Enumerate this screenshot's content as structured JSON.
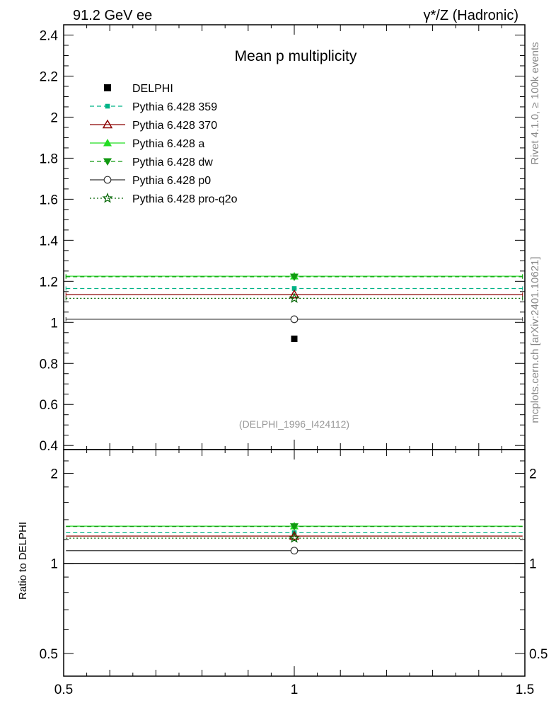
{
  "header": {
    "left": "91.2 GeV ee",
    "right": "γ*/Z (Hadronic)"
  },
  "side_labels": {
    "rivet": "Rivet 4.1.0, ≥ 100k events",
    "mcplots": "mcplots.cern.ch [arXiv:2401.10621]"
  },
  "chart_data": [
    {
      "type": "line",
      "title": "Mean p multiplicity",
      "analysis_tag": "(DELPHI_1996_I424112)",
      "xlim": [
        0.5,
        1.5
      ],
      "ylim": [
        0.38,
        2.45
      ],
      "y_ticks": [
        0.4,
        0.6,
        0.8,
        1,
        1.2,
        1.4,
        1.6,
        1.8,
        2,
        2.2,
        2.4
      ],
      "y_tick_labels": [
        "0.4",
        "0.6",
        "0.8",
        "1",
        "1.2",
        "1.4",
        "1.6",
        "1.8",
        "2",
        "2.2",
        "2.4"
      ],
      "data": {
        "name": "DELPHI",
        "x": [
          1
        ],
        "y": [
          0.92
        ]
      },
      "series": [
        {
          "name": "Pythia 6.428 359",
          "value": 1.165,
          "color": "#00b386",
          "dash": "dashed",
          "marker": "square-small"
        },
        {
          "name": "Pythia 6.428 370",
          "value": 1.135,
          "color": "#8b0000",
          "dash": "solid",
          "marker": "triangle-open"
        },
        {
          "name": "Pythia 6.428 a",
          "value": 1.225,
          "color": "#22dd22",
          "dash": "solid",
          "marker": "triangle-filled"
        },
        {
          "name": "Pythia 6.428 dw",
          "value": 1.222,
          "color": "#119911",
          "dash": "dashed",
          "marker": "triangle-down"
        },
        {
          "name": "Pythia 6.428 p0",
          "value": 1.015,
          "color": "#333333",
          "dash": "solid",
          "marker": "circle-open"
        },
        {
          "name": "Pythia 6.428 pro-q2o",
          "value": 1.117,
          "color": "#006400",
          "dash": "dotted",
          "marker": "star"
        }
      ]
    },
    {
      "type": "line",
      "ylabel": "Ratio to DELPHI",
      "scale": "log",
      "xlim": [
        0.5,
        1.5
      ],
      "ylim": [
        0.42,
        2.4
      ],
      "x_ticks": [
        0.5,
        1,
        1.5
      ],
      "x_tick_labels": [
        "0.5",
        "1",
        "1.5"
      ],
      "y_ticks": [
        0.5,
        1,
        2
      ],
      "y_tick_labels": [
        "0.5",
        "1",
        "2"
      ],
      "reference_line": 1,
      "series": [
        {
          "name": "Pythia 6.428 359",
          "value": 1.266
        },
        {
          "name": "Pythia 6.428 370",
          "value": 1.234
        },
        {
          "name": "Pythia 6.428 a",
          "value": 1.332
        },
        {
          "name": "Pythia 6.428 dw",
          "value": 1.328
        },
        {
          "name": "Pythia 6.428 p0",
          "value": 1.103
        },
        {
          "name": "Pythia 6.428 pro-q2o",
          "value": 1.214
        }
      ]
    }
  ]
}
